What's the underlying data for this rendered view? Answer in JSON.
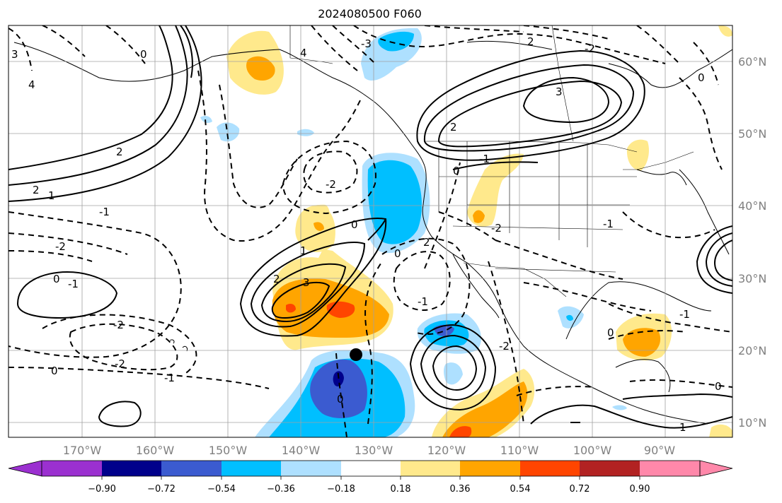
{
  "title": "2024080500 F060",
  "longitude_labels": [
    "170°W",
    "160°W",
    "150°W",
    "140°W",
    "130°W",
    "120°W",
    "110°W",
    "100°W",
    "90°W"
  ],
  "latitude_labels": [
    "60°N",
    "50°N",
    "40°N",
    "30°N",
    "20°N",
    "10°N"
  ],
  "colorbar": {
    "tick_labels": [
      "−0.90",
      "−0.72",
      "−0.54",
      "−0.36",
      "−0.18",
      "0.18",
      "0.36",
      "0.54",
      "0.72",
      "0.90"
    ],
    "colors": [
      "#9b30d0",
      "#00008b",
      "#3b5bd0",
      "#00bfff",
      "#aee0ff",
      "#ffffff",
      "#ffe98c",
      "#ffa500",
      "#ff4500",
      "#b22222",
      "#ff88aa"
    ]
  },
  "contour_labels": [
    "2",
    "3",
    "2",
    "0",
    "1",
    "2",
    "3",
    "4",
    "2",
    "1",
    "-2",
    "-1",
    "-2",
    "-1",
    "0",
    "-2",
    "-1",
    "0",
    "-2",
    "-3",
    "0",
    "4",
    "3",
    "-2",
    "0",
    "-1",
    "2",
    "0",
    "2",
    "-1",
    "0",
    "-2",
    "0",
    "-2",
    "-1",
    "0",
    "1",
    "-1",
    "0"
  ],
  "colors": {
    "orange": "#ffa500",
    "light_yellow": "#ffe98c",
    "red_orange": "#ff4500",
    "cyan": "#00bfff",
    "light_blue": "#aee0ff",
    "blue": "#3b5bd0",
    "navy": "#00008b",
    "grid": "#a0a0a0"
  }
}
